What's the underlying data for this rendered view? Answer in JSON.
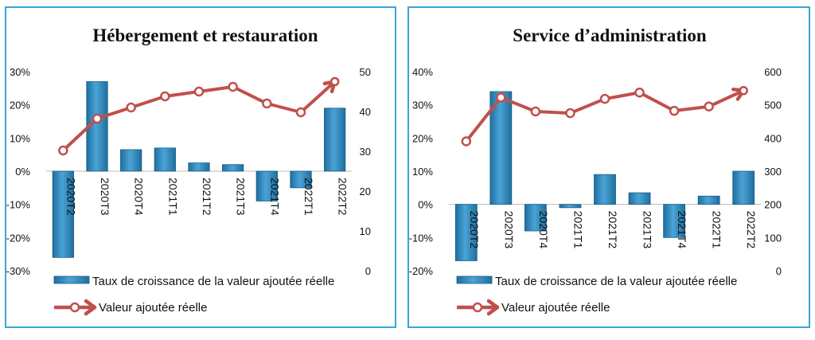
{
  "chart_data": [
    {
      "type": "bar+line",
      "title": "Hébergement et restauration",
      "categories": [
        "2020T2",
        "2020T3",
        "2020T4",
        "2021T1",
        "2021T2",
        "2021T3",
        "2021T4",
        "2022T1",
        "2022T2"
      ],
      "series": [
        {
          "name": "Taux de croissance de la valeur ajoutée réelle",
          "type": "bar",
          "axis": "left",
          "values": [
            -26,
            27,
            6.5,
            7,
            2.5,
            2,
            -9,
            -5,
            19
          ]
        },
        {
          "name": "Valeur ajoutée réelle",
          "type": "line",
          "axis": "right",
          "values": [
            30.2,
            38.2,
            41,
            43.8,
            45,
            46.2,
            42,
            39.8,
            47.5
          ]
        }
      ],
      "y_left": {
        "min": -30,
        "max": 30,
        "step": 10,
        "ticks": [
          "30%",
          "20%",
          "10%",
          "0%",
          "-10%",
          "-20%",
          "-30%"
        ]
      },
      "y_right": {
        "min": 0,
        "max": 50,
        "step": 10,
        "ticks": [
          "50",
          "40",
          "30",
          "20",
          "10",
          "0"
        ]
      },
      "legend_placement": "bottom-left",
      "grid": false
    },
    {
      "type": "bar+line",
      "title": "Service d’administration",
      "categories": [
        "2020T2",
        "2020T3",
        "2020T4",
        "2021T1",
        "2021T2",
        "2021T3",
        "2021T4",
        "2022T1",
        "2022T2"
      ],
      "series": [
        {
          "name": "Taux de croissance de la valeur ajoutée réelle",
          "type": "bar",
          "axis": "left",
          "values": [
            -17,
            34,
            -8,
            -1,
            9,
            3.5,
            -10,
            2.5,
            10
          ]
        },
        {
          "name": "Valeur ajoutée réelle",
          "type": "line",
          "axis": "right",
          "values": [
            390,
            522,
            480,
            475,
            518,
            537,
            482,
            495,
            543
          ]
        }
      ],
      "y_left": {
        "min": -20,
        "max": 40,
        "step": 10,
        "ticks": [
          "40%",
          "30%",
          "20%",
          "10%",
          "0%",
          "-10%",
          "-20%"
        ]
      },
      "y_right": {
        "min": 0,
        "max": 600,
        "step": 100,
        "ticks": [
          "600",
          "500",
          "400",
          "300",
          "200",
          "100",
          "0"
        ]
      },
      "legend_placement": "bottom-left",
      "grid": false
    }
  ],
  "colors": {
    "bar": "#4aa3d6",
    "bar_dark": "#1f6f9e",
    "line": "#c0504d",
    "border": "#39a6d8"
  }
}
